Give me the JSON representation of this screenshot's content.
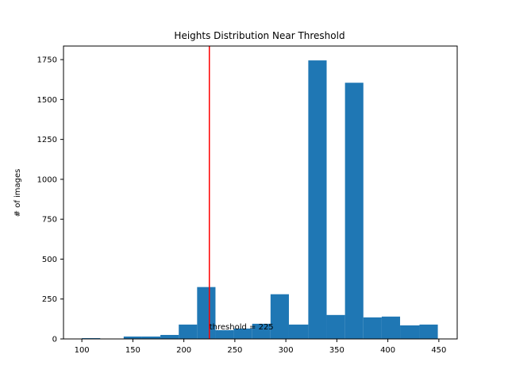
{
  "chart_data": {
    "type": "bar",
    "title": "Heights Distribution Near Threshold",
    "xlabel": "",
    "ylabel": "# of images",
    "xlim": [
      82,
      468
    ],
    "ylim": [
      0,
      1835
    ],
    "xticks": [
      100,
      150,
      200,
      250,
      300,
      350,
      400,
      450
    ],
    "yticks": [
      0,
      250,
      500,
      750,
      1000,
      1250,
      1500,
      1750
    ],
    "bins": [
      {
        "start": 100,
        "end": 118,
        "value": 5
      },
      {
        "start": 118,
        "end": 141,
        "value": 0
      },
      {
        "start": 141,
        "end": 159,
        "value": 15
      },
      {
        "start": 159,
        "end": 177,
        "value": 15
      },
      {
        "start": 177,
        "end": 195,
        "value": 25
      },
      {
        "start": 195,
        "end": 213,
        "value": 90
      },
      {
        "start": 213,
        "end": 231,
        "value": 325
      },
      {
        "start": 231,
        "end": 249,
        "value": 55
      },
      {
        "start": 249,
        "end": 267,
        "value": 65
      },
      {
        "start": 267,
        "end": 285,
        "value": 95
      },
      {
        "start": 285,
        "end": 303,
        "value": 280
      },
      {
        "start": 303,
        "end": 322,
        "value": 90
      },
      {
        "start": 322,
        "end": 340,
        "value": 1745
      },
      {
        "start": 340,
        "end": 358,
        "value": 150
      },
      {
        "start": 358,
        "end": 376,
        "value": 1605
      },
      {
        "start": 376,
        "end": 394,
        "value": 135
      },
      {
        "start": 394,
        "end": 412,
        "value": 140
      },
      {
        "start": 412,
        "end": 431,
        "value": 85
      },
      {
        "start": 431,
        "end": 449,
        "value": 90
      }
    ],
    "threshold": {
      "value": 225,
      "label": "threshold = 225"
    },
    "grid": false,
    "colors": {
      "bar": "#1f77b4",
      "threshold": "#ff0000",
      "axis": "#000000"
    }
  }
}
